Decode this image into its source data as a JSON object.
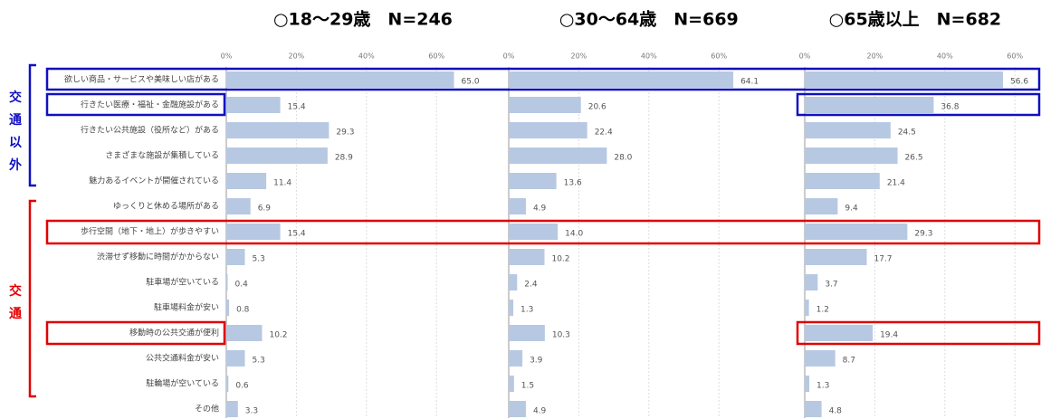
{
  "chart_data": {
    "type": "bar",
    "orientation": "horizontal",
    "categories": [
      "欲しい商品・サービスや美味しい店がある",
      "行きたい医療・福祉・金融施設がある",
      "行きたい公共施設（役所など）がある",
      "さまざまな施設が集積している",
      "魅力あるイベントが開催されている",
      "ゆっくりと休める場所がある",
      "歩行空間（地下・地上）が歩きやすい",
      "渋滞せず移動に時間がかからない",
      "駐車場が空いている",
      "駐車場料金が安い",
      "移動時の公共交通が便利",
      "公共交通料金が安い",
      "駐輪場が空いている",
      "その他"
    ],
    "groups": [
      {
        "label": "交通以外",
        "color": "#1010c0"
      },
      {
        "label": "交通",
        "color": "#e00000"
      }
    ],
    "series": [
      {
        "name": "○18～29歳　N=246",
        "color": "#b7c8e2",
        "xlim": [
          0,
          78
        ],
        "xticks": [
          {
            "value": 0,
            "label": "0%"
          },
          {
            "value": 20,
            "label": "20%"
          },
          {
            "value": 40,
            "label": "40%"
          },
          {
            "value": 60,
            "label": "60%"
          }
        ],
        "values": [
          65.0,
          15.4,
          29.3,
          28.9,
          11.4,
          6.9,
          15.4,
          5.3,
          0.4,
          0.8,
          10.2,
          5.3,
          0.6,
          3.3
        ],
        "value_labels": [
          "65.0",
          "15.4",
          "29.3",
          "28.9",
          "11.4",
          "6.9",
          "15.4",
          "5.3",
          "0.4",
          "0.8",
          "10.2",
          "5.3",
          "0.6",
          "3.3"
        ]
      },
      {
        "name": "○30～64歳　N=669",
        "color": "#b7c8e2",
        "xlim": [
          0,
          80
        ],
        "xticks": [
          {
            "value": 0,
            "label": "0%"
          },
          {
            "value": 20,
            "label": "20%"
          },
          {
            "value": 40,
            "label": "40%"
          },
          {
            "value": 60,
            "label": "60%"
          }
        ],
        "values": [
          64.1,
          20.6,
          22.4,
          28.0,
          13.6,
          4.9,
          14.0,
          10.2,
          2.4,
          1.3,
          10.3,
          3.9,
          1.5,
          4.9
        ],
        "value_labels": [
          "64.1",
          "20.6",
          "22.4",
          "28.0",
          "13.6",
          "4.9",
          "14.0",
          "10.2",
          "2.4",
          "1.3",
          "10.3",
          "3.9",
          "1.5",
          "4.9"
        ]
      },
      {
        "name": "○65歳以上　N=682",
        "color": "#b7c8e2",
        "xlim": [
          0,
          63
        ],
        "xticks": [
          {
            "value": 0,
            "label": "0%"
          },
          {
            "value": 20,
            "label": "20%"
          },
          {
            "value": 40,
            "label": "40%"
          },
          {
            "value": 60,
            "label": "60%"
          }
        ],
        "values": [
          56.6,
          36.8,
          24.5,
          26.5,
          21.4,
          9.4,
          29.3,
          17.7,
          3.7,
          1.2,
          19.4,
          8.7,
          1.3,
          4.8
        ],
        "value_labels": [
          "56.6",
          "36.8",
          "24.5",
          "26.5",
          "21.4",
          "9.4",
          "29.3",
          "17.7",
          "3.7",
          "1.2",
          "19.4",
          "8.7",
          "1.3",
          "4.8"
        ]
      }
    ]
  }
}
